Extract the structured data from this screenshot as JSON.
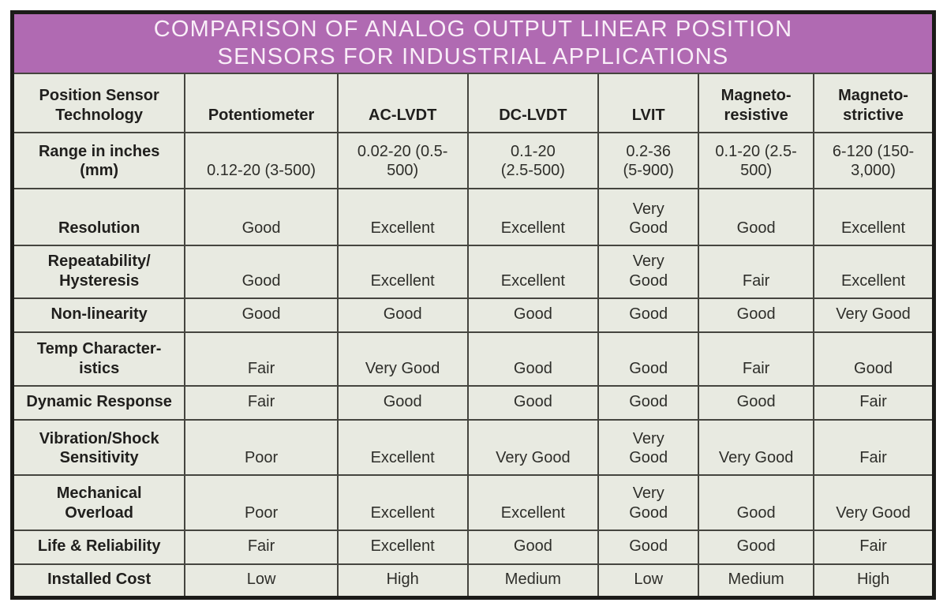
{
  "banner": {
    "line1": "COMPARISON OF ANALOG OUTPUT LINEAR POSITION",
    "line2": "SENSORS FOR INDUSTRIAL APPLICATIONS"
  },
  "colors": {
    "banner_bg": "#b06ab2",
    "banner_text": "#f9eef8",
    "cell_bg": "#e8eae1",
    "grid_border": "#45453f",
    "outer_border": "#1b1b18",
    "cell_text": "#2e2e2a"
  },
  "chart_data": {
    "type": "table",
    "title": "COMPARISON OF ANALOG OUTPUT LINEAR POSITION SENSORS FOR INDUSTRIAL APPLICATIONS",
    "corner_header": "Position Sensor\nTechnology",
    "columns": [
      "Potentiometer",
      "AC-LVDT",
      "DC-LVDT",
      "LVIT",
      "Magneto-\nresistive",
      "Magneto-\nstrictive"
    ],
    "rows": [
      {
        "label": "Range in inches\n(mm)",
        "values": [
          "0.12-20 (3-500)",
          "0.02-20 (0.5-\n500)",
          "0.1-20\n(2.5-500)",
          "0.2-36\n(5-900)",
          "0.1-20 (2.5-\n500)",
          "6-120 (150-\n3,000)"
        ]
      },
      {
        "label": "Resolution",
        "values": [
          "Good",
          "Excellent",
          "Excellent",
          "Very\nGood",
          "Good",
          "Excellent"
        ]
      },
      {
        "label": "Repeatability/\nHysteresis",
        "values": [
          "Good",
          "Excellent",
          "Excellent",
          "Very\nGood",
          "Fair",
          "Excellent"
        ]
      },
      {
        "label": "Non-linearity",
        "values": [
          "Good",
          "Good",
          "Good",
          "Good",
          "Good",
          "Very Good"
        ]
      },
      {
        "label": "Temp Character-\nistics",
        "values": [
          "Fair",
          "Very Good",
          "Good",
          "Good",
          "Fair",
          "Good"
        ]
      },
      {
        "label": "Dynamic Response",
        "values": [
          "Fair",
          "Good",
          "Good",
          "Good",
          "Good",
          "Fair"
        ]
      },
      {
        "label": "Vibration/Shock\nSensitivity",
        "values": [
          "Poor",
          "Excellent",
          "Very Good",
          "Very\nGood",
          "Very Good",
          "Fair"
        ]
      },
      {
        "label": "Mechanical\nOverload",
        "values": [
          "Poor",
          "Excellent",
          "Excellent",
          "Very\nGood",
          "Good",
          "Very Good"
        ]
      },
      {
        "label": "Life & Reliability",
        "values": [
          "Fair",
          "Excellent",
          "Good",
          "Good",
          "Good",
          "Fair"
        ]
      },
      {
        "label": "Installed Cost",
        "values": [
          "Low",
          "High",
          "Medium",
          "Low",
          "Medium",
          "High"
        ]
      }
    ]
  }
}
